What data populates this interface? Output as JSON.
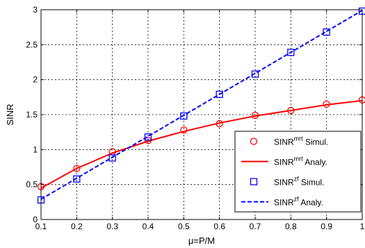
{
  "chart_data": {
    "type": "line",
    "title": "",
    "xlabel": "μ=P/M",
    "ylabel": "SINR",
    "xlim": [
      0.1,
      1
    ],
    "ylim": [
      0,
      3
    ],
    "grid": true,
    "legend_position": "bottom-right",
    "x_ticks": [
      "0.1",
      "0.2",
      "0.3",
      "0.4",
      "0.5",
      "0.6",
      "0.7",
      "0.8",
      "0.9",
      "1"
    ],
    "y_ticks": [
      "0",
      "0.5",
      "1",
      "1.5",
      "2",
      "2.5",
      "3"
    ],
    "x": [
      0.1,
      0.2,
      0.3,
      0.4,
      0.5,
      0.6,
      0.7,
      0.8,
      0.9,
      1.0
    ],
    "series": [
      {
        "name_main": "SINR",
        "name_sup": "mrt",
        "name_tail": " Simul.",
        "style": "markers",
        "marker": "circle",
        "color": "#ff0000",
        "values": [
          0.47,
          0.73,
          0.97,
          1.13,
          1.28,
          1.37,
          1.49,
          1.56,
          1.65,
          1.71
        ]
      },
      {
        "name_main": "SINR",
        "name_sup": "mrt",
        "name_tail": " Analy.",
        "style": "solid",
        "color": "#ff0000",
        "values": [
          0.45,
          0.73,
          0.95,
          1.12,
          1.26,
          1.38,
          1.48,
          1.56,
          1.64,
          1.7
        ]
      },
      {
        "name_main": "SINR",
        "name_sup": "zf",
        "name_tail": " Simul.",
        "style": "markers",
        "marker": "square",
        "color": "#0000ff",
        "values": [
          0.28,
          0.58,
          0.88,
          1.18,
          1.48,
          1.79,
          2.08,
          2.39,
          2.68,
          2.98
        ]
      },
      {
        "name_main": "SINR",
        "name_sup": "zf",
        "name_tail": " Analy.",
        "style": "dashed",
        "color": "#0000ff",
        "values": [
          0.29,
          0.59,
          0.89,
          1.19,
          1.49,
          1.79,
          2.09,
          2.39,
          2.69,
          2.99
        ]
      }
    ]
  }
}
